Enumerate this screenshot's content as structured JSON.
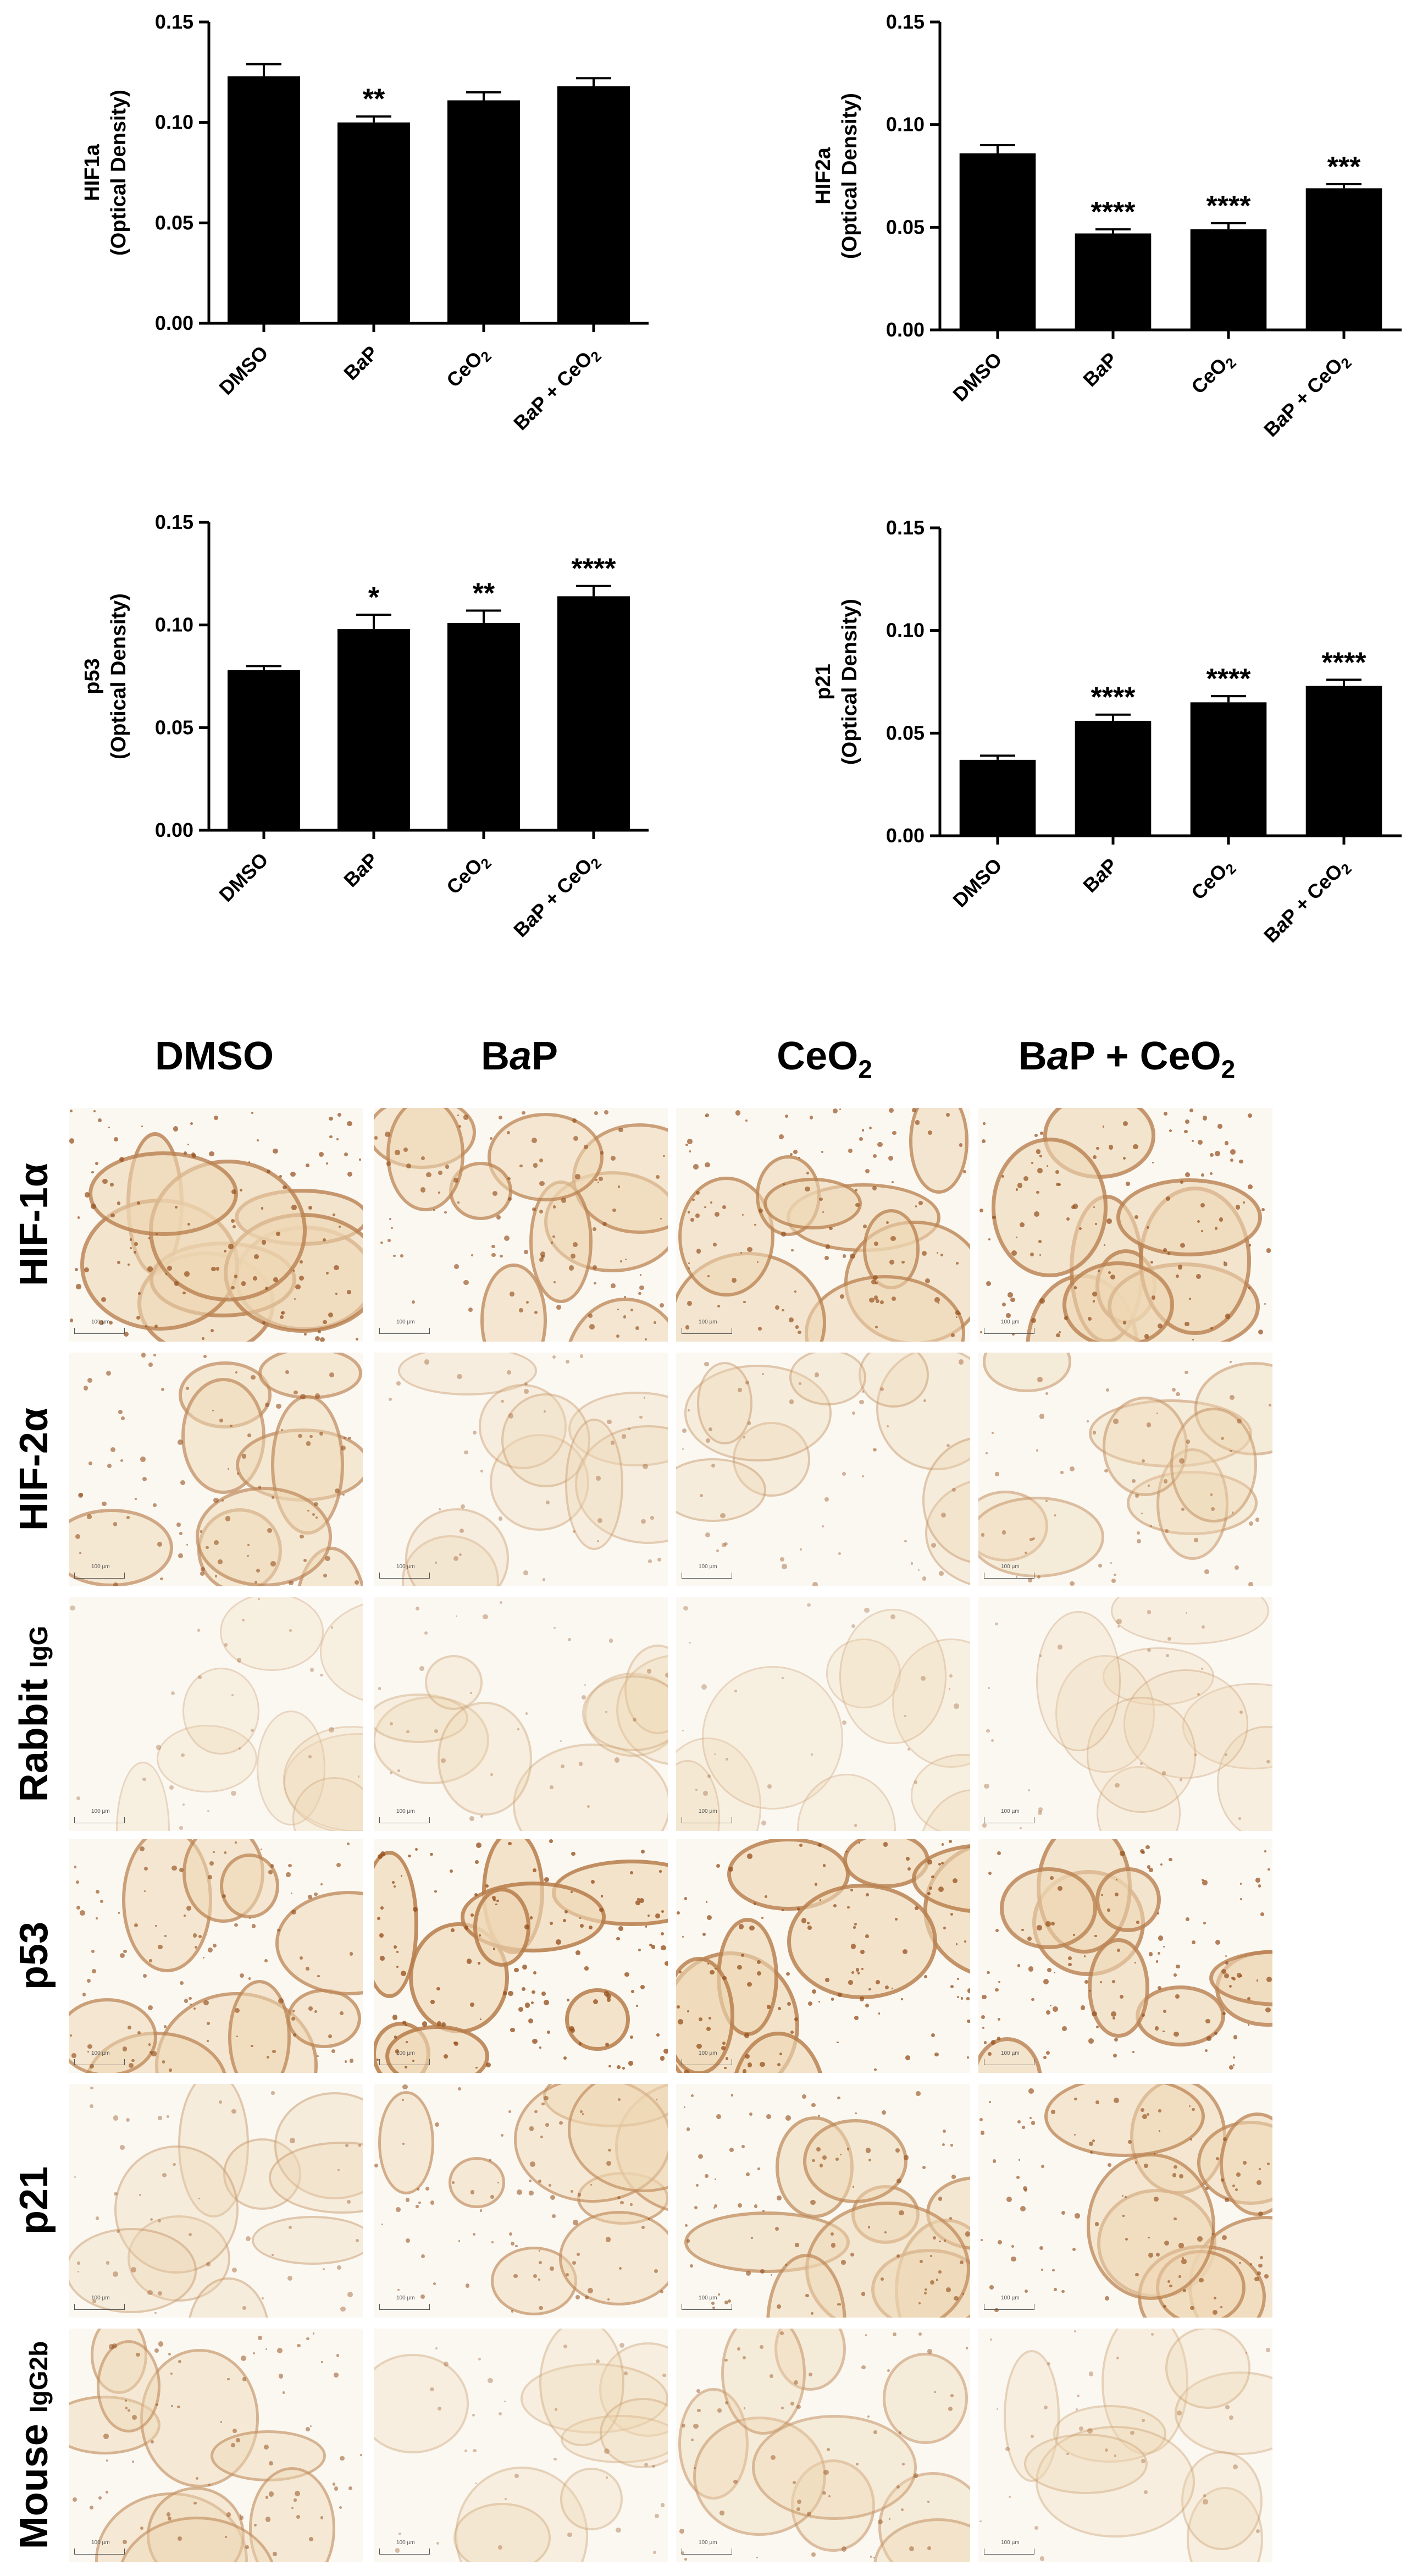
{
  "colors": {
    "bar": "#000000",
    "tissue_base": "#f4e8d4",
    "stain": "#a8642e"
  },
  "chart_data": [
    {
      "type": "bar",
      "ylabel": "HIF1a",
      "ylabel2": "(Optical Density)",
      "categories": [
        "DMSO",
        "BaP",
        "CeO2",
        "BaP + CeO2"
      ],
      "values": [
        0.123,
        0.1,
        0.111,
        0.118
      ],
      "errors": [
        0.006,
        0.003,
        0.004,
        0.004
      ],
      "significance": [
        "",
        "**",
        "",
        ""
      ],
      "ylim": [
        0,
        0.15
      ],
      "yticks": [
        "0.00",
        "0.05",
        "0.10",
        "0.15"
      ]
    },
    {
      "type": "bar",
      "ylabel": "HIF2a",
      "ylabel2": "(Optical Density)",
      "categories": [
        "DMSO",
        "BaP",
        "CeO2",
        "BaP + CeO2"
      ],
      "values": [
        0.086,
        0.047,
        0.049,
        0.069
      ],
      "errors": [
        0.004,
        0.002,
        0.003,
        0.002
      ],
      "significance": [
        "",
        "****",
        "****",
        "***"
      ],
      "ylim": [
        0,
        0.15
      ],
      "yticks": [
        "0.00",
        "0.05",
        "0.10",
        "0.15"
      ]
    },
    {
      "type": "bar",
      "ylabel": "p53",
      "ylabel2": "(Optical Density)",
      "categories": [
        "DMSO",
        "BaP",
        "CeO2",
        "BaP + CeO2"
      ],
      "values": [
        0.078,
        0.098,
        0.101,
        0.114
      ],
      "errors": [
        0.002,
        0.007,
        0.006,
        0.005
      ],
      "significance": [
        "",
        "*",
        "**",
        "****"
      ],
      "ylim": [
        0,
        0.15
      ],
      "yticks": [
        "0.00",
        "0.05",
        "0.10",
        "0.15"
      ]
    },
    {
      "type": "bar",
      "ylabel": "p21",
      "ylabel2": "(Optical Density)",
      "categories": [
        "DMSO",
        "BaP",
        "CeO2",
        "BaP + CeO2"
      ],
      "values": [
        0.037,
        0.056,
        0.065,
        0.073
      ],
      "errors": [
        0.002,
        0.003,
        0.003,
        0.003
      ],
      "significance": [
        "",
        "****",
        "****",
        "****"
      ],
      "ylim": [
        0,
        0.15
      ],
      "yticks": [
        "0.00",
        "0.05",
        "0.10",
        "0.15"
      ]
    }
  ],
  "micrographs": {
    "columns": [
      "DMSO",
      "BaP",
      "CeO2",
      "BaP + CeO2"
    ],
    "rows": [
      {
        "label": "HIF-1α",
        "sub": "",
        "intensity": [
          0.7,
          0.6,
          0.65,
          0.7
        ]
      },
      {
        "label": "HIF-2α",
        "sub": "",
        "intensity": [
          0.5,
          0.15,
          0.2,
          0.3
        ]
      },
      {
        "label": "Rabbit ",
        "sub": "IgG",
        "intensity": [
          0.05,
          0.1,
          0.05,
          0.08
        ]
      },
      {
        "label": "p53",
        "sub": "",
        "intensity": [
          0.6,
          0.8,
          0.75,
          0.7
        ]
      },
      {
        "label": "p21",
        "sub": "",
        "intensity": [
          0.2,
          0.45,
          0.55,
          0.6
        ]
      },
      {
        "label": "Mouse ",
        "sub": "IgG2b",
        "intensity": [
          0.4,
          0.1,
          0.3,
          0.1
        ]
      }
    ],
    "scale_label": "100 µm"
  }
}
